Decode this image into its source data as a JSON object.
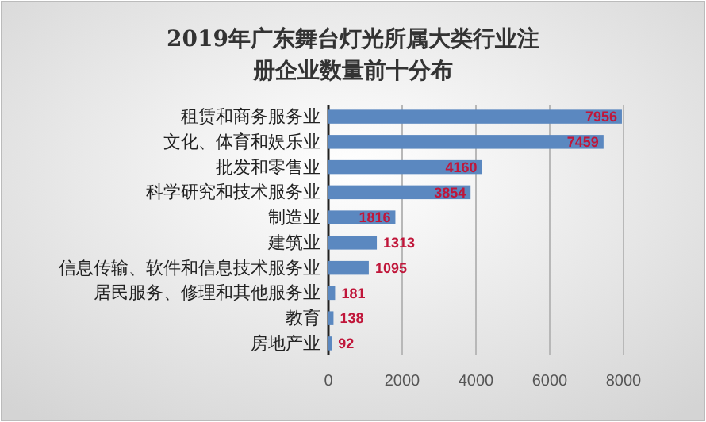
{
  "chart_data": {
    "type": "bar",
    "orientation": "horizontal",
    "title": "2019年广东舞台灯光所属大类行业注册企业数量前十分布",
    "categories": [
      "租赁和商务服务业",
      "文化、体育和娱乐业",
      "批发和零售业",
      "科学研究和技术服务业",
      "制造业",
      "建筑业",
      "信息传输、软件和信息技术服务业",
      "居民服务、修理和其他服务业",
      "教育",
      "房地产业"
    ],
    "values": [
      7956,
      7459,
      4160,
      3854,
      1816,
      1313,
      1095,
      181,
      138,
      92
    ],
    "color": "#5b88c0",
    "data_labels": true,
    "xlim": [
      0,
      8000
    ],
    "xticks": [
      0,
      2000,
      4000,
      6000,
      8000
    ],
    "grid": "x"
  }
}
